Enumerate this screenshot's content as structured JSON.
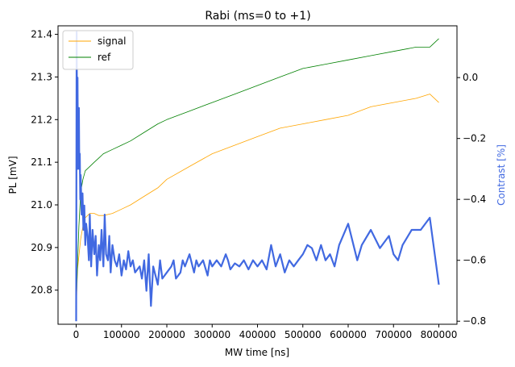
{
  "chart_data": {
    "type": "line",
    "title": "Rabi (ms=0 to +1)",
    "xlabel": "MW time [ns]",
    "ylabel_left": "PL [mV]",
    "ylabel_right": "Contrast [%]",
    "xlim": [
      -40000,
      840000
    ],
    "ylim_left": [
      20.72,
      21.42
    ],
    "ylim_right": [
      -0.81,
      0.17
    ],
    "x_ticks": [
      0,
      100000,
      200000,
      300000,
      400000,
      500000,
      600000,
      700000,
      800000
    ],
    "x_tick_labels": [
      "0",
      "100000",
      "200000",
      "300000",
      "400000",
      "500000",
      "600000",
      "700000",
      "800000"
    ],
    "y_left_ticks": [
      20.8,
      20.9,
      21.0,
      21.1,
      21.2,
      21.3,
      21.4
    ],
    "y_left_tick_labels": [
      "20.8",
      "20.9",
      "21.0",
      "21.1",
      "21.2",
      "21.3",
      "21.4"
    ],
    "y_right_ticks": [
      -0.8,
      -0.6,
      -0.4,
      -0.2,
      0.0
    ],
    "y_right_tick_labels": [
      "−0.8",
      "−0.6",
      "−0.4",
      "−0.2",
      "0.0"
    ],
    "legend_position": "top-left",
    "colors": {
      "signal": "#ffa500",
      "ref": "#008000",
      "contrast": "#4169e1",
      "right_axis_label": "#4169e1"
    },
    "series": [
      {
        "name": "signal",
        "axis": "left",
        "x": [
          0,
          3000,
          6000,
          10000,
          15000,
          20000,
          30000,
          40000,
          50000,
          60000,
          80000,
          100000,
          120000,
          150000,
          180000,
          200000,
          250000,
          300000,
          350000,
          400000,
          450000,
          500000,
          550000,
          600000,
          650000,
          700000,
          750000,
          780000,
          800000
        ],
        "y": [
          20.75,
          20.85,
          20.88,
          20.92,
          20.95,
          20.97,
          20.98,
          20.98,
          20.975,
          20.975,
          20.98,
          20.99,
          21.0,
          21.02,
          21.04,
          21.06,
          21.09,
          21.12,
          21.14,
          21.16,
          21.18,
          21.19,
          21.2,
          21.21,
          21.23,
          21.24,
          21.25,
          21.26,
          21.24
        ]
      },
      {
        "name": "ref",
        "axis": "left",
        "x": [
          0,
          3000,
          6000,
          10000,
          15000,
          20000,
          30000,
          40000,
          50000,
          60000,
          80000,
          100000,
          120000,
          150000,
          180000,
          200000,
          250000,
          300000,
          350000,
          400000,
          450000,
          500000,
          550000,
          600000,
          650000,
          700000,
          750000,
          780000,
          800000
        ],
        "y": [
          20.76,
          20.86,
          20.95,
          21.03,
          21.06,
          21.08,
          21.09,
          21.1,
          21.11,
          21.12,
          21.13,
          21.14,
          21.15,
          21.17,
          21.19,
          21.2,
          21.22,
          21.24,
          21.26,
          21.28,
          21.3,
          21.32,
          21.33,
          21.34,
          21.35,
          21.36,
          21.37,
          21.37,
          21.39
        ]
      },
      {
        "name": "contrast",
        "axis": "right",
        "x": [
          0,
          1000,
          2000,
          3000,
          4000,
          5000,
          6000,
          7000,
          8000,
          9000,
          10000,
          12000,
          14000,
          16000,
          18000,
          20000,
          22000,
          25000,
          28000,
          30000,
          33000,
          36000,
          40000,
          43000,
          46000,
          50000,
          53000,
          56000,
          60000,
          63000,
          66000,
          70000,
          73000,
          76000,
          80000,
          85000,
          90000,
          95000,
          100000,
          105000,
          110000,
          115000,
          120000,
          125000,
          130000,
          140000,
          145000,
          150000,
          155000,
          160000,
          165000,
          170000,
          180000,
          185000,
          190000,
          200000,
          210000,
          215000,
          220000,
          230000,
          235000,
          240000,
          250000,
          260000,
          265000,
          270000,
          280000,
          290000,
          295000,
          300000,
          310000,
          320000,
          330000,
          335000,
          340000,
          350000,
          360000,
          370000,
          380000,
          390000,
          400000,
          410000,
          420000,
          430000,
          440000,
          450000,
          460000,
          470000,
          480000,
          490000,
          500000,
          510000,
          520000,
          530000,
          540000,
          550000,
          560000,
          570000,
          580000,
          600000,
          620000,
          630000,
          650000,
          670000,
          690000,
          700000,
          710000,
          720000,
          740000,
          760000,
          780000,
          800000
        ],
        "y": [
          -0.8,
          0.15,
          -0.15,
          0.0,
          -0.3,
          -0.2,
          -0.1,
          -0.3,
          -0.25,
          -0.4,
          -0.32,
          -0.45,
          -0.38,
          -0.5,
          -0.42,
          -0.55,
          -0.48,
          -0.52,
          -0.6,
          -0.45,
          -0.62,
          -0.5,
          -0.58,
          -0.52,
          -0.65,
          -0.55,
          -0.6,
          -0.5,
          -0.62,
          -0.45,
          -0.58,
          -0.6,
          -0.52,
          -0.64,
          -0.55,
          -0.6,
          -0.62,
          -0.58,
          -0.65,
          -0.6,
          -0.63,
          -0.57,
          -0.62,
          -0.6,
          -0.64,
          -0.62,
          -0.66,
          -0.6,
          -0.7,
          -0.58,
          -0.75,
          -0.62,
          -0.68,
          -0.6,
          -0.66,
          -0.64,
          -0.62,
          -0.6,
          -0.66,
          -0.64,
          -0.6,
          -0.62,
          -0.58,
          -0.64,
          -0.6,
          -0.62,
          -0.6,
          -0.65,
          -0.6,
          -0.62,
          -0.6,
          -0.62,
          -0.58,
          -0.6,
          -0.63,
          -0.61,
          -0.62,
          -0.6,
          -0.63,
          -0.6,
          -0.62,
          -0.6,
          -0.63,
          -0.55,
          -0.62,
          -0.58,
          -0.64,
          -0.6,
          -0.62,
          -0.6,
          -0.58,
          -0.55,
          -0.56,
          -0.6,
          -0.55,
          -0.6,
          -0.58,
          -0.62,
          -0.55,
          -0.48,
          -0.6,
          -0.55,
          -0.5,
          -0.56,
          -0.52,
          -0.58,
          -0.6,
          -0.55,
          -0.5,
          -0.5,
          -0.46,
          -0.68
        ]
      }
    ]
  }
}
